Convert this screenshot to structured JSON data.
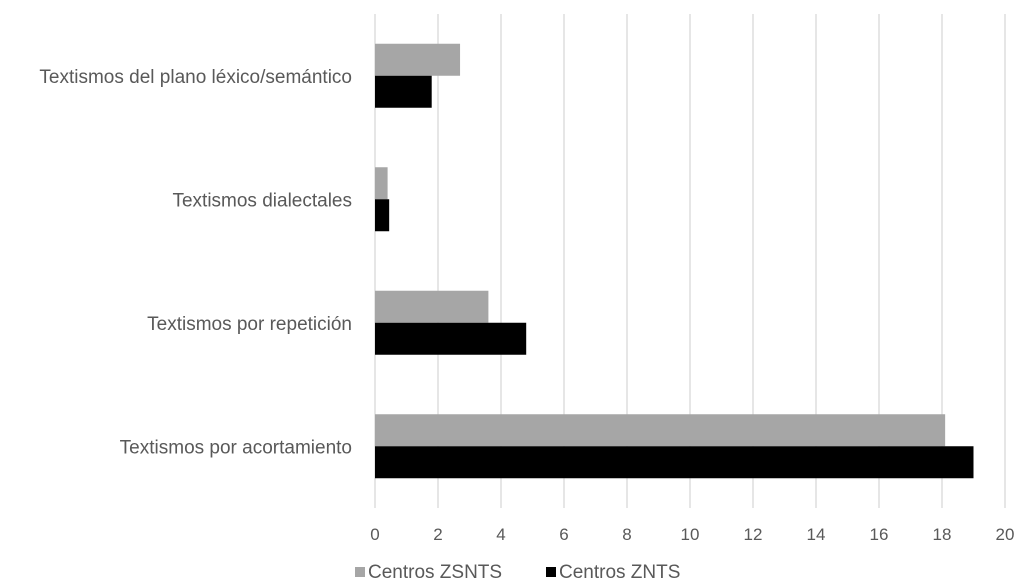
{
  "chart_data": {
    "type": "bar",
    "orientation": "horizontal",
    "categories": [
      "Textismos del plano léxico/semántico",
      "Textismos dialectales",
      "Textismos por repetición",
      "Textismos por acortamiento"
    ],
    "series": [
      {
        "name": "Centros ZSNTS",
        "color": "#a6a6a6",
        "values": [
          2.7,
          0.4,
          3.6,
          18.1
        ]
      },
      {
        "name": "Centros ZNTS",
        "color": "#000000",
        "values": [
          1.8,
          0.45,
          4.8,
          19.0
        ]
      }
    ],
    "xlim": [
      0,
      20
    ],
    "xticks": [
      "0",
      "2",
      "4",
      "6",
      "8",
      "10",
      "12",
      "14",
      "16",
      "18",
      "20"
    ],
    "grid": true,
    "legend_position": "bottom"
  }
}
